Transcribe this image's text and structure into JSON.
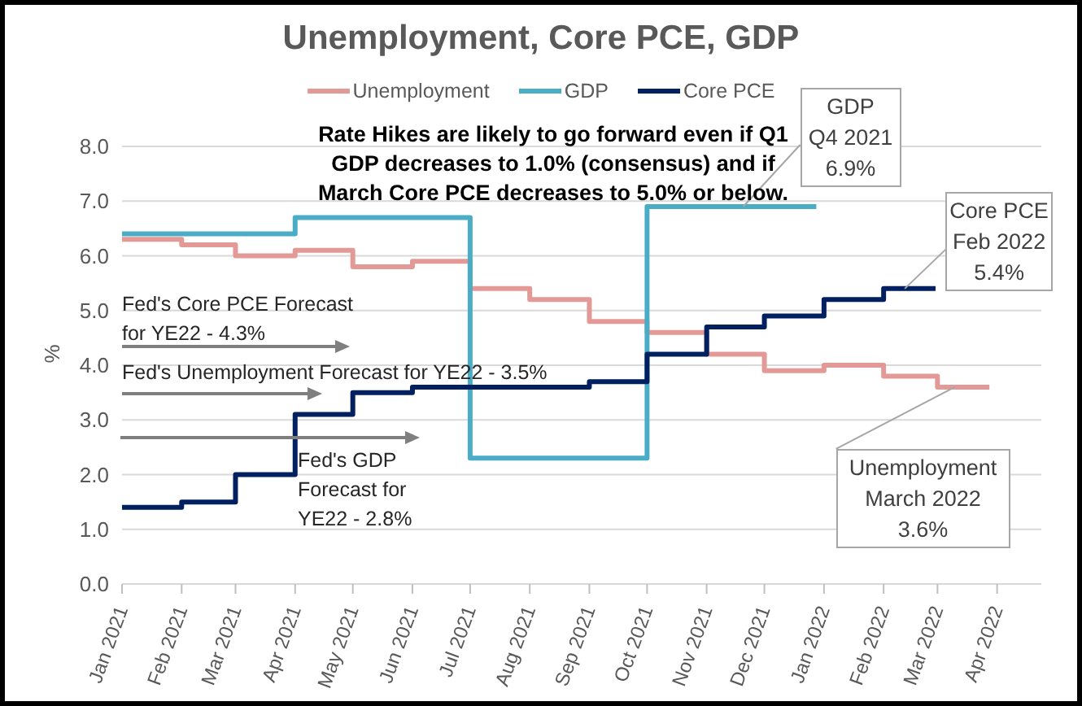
{
  "chart_data": {
    "type": "step",
    "title": "Unemployment, Core PCE, GDP",
    "ylabel": "%",
    "series": [
      {
        "name": "Unemployment",
        "color": "#e39a97",
        "x": [
          "2021-01-01",
          "2021-02-01",
          "2021-03-01",
          "2021-04-01",
          "2021-05-01",
          "2021-06-01",
          "2021-07-01",
          "2021-08-01",
          "2021-09-01",
          "2021-10-01",
          "2021-11-01",
          "2021-12-01",
          "2022-01-01",
          "2022-02-01",
          "2022-03-01",
          "2022-03-28"
        ],
        "values": [
          6.3,
          6.2,
          6.0,
          6.1,
          5.8,
          5.9,
          5.4,
          5.2,
          4.8,
          4.6,
          4.2,
          3.9,
          4.0,
          3.8,
          3.6,
          3.6
        ]
      },
      {
        "name": "GDP",
        "color": "#4bacc6",
        "x": [
          "2021-01-01",
          "2021-04-01",
          "2021-07-01",
          "2021-10-01",
          "2021-12-28"
        ],
        "values": [
          6.4,
          6.7,
          2.3,
          6.9,
          6.9
        ]
      },
      {
        "name": "Core PCE",
        "color": "#002060",
        "x": [
          "2021-01-01",
          "2021-02-01",
          "2021-03-01",
          "2021-04-01",
          "2021-05-01",
          "2021-06-01",
          "2021-07-01",
          "2021-08-01",
          "2021-09-01",
          "2021-10-01",
          "2021-11-01",
          "2021-12-01",
          "2022-01-01",
          "2022-02-01",
          "2022-02-28"
        ],
        "values": [
          1.4,
          1.5,
          2.0,
          3.1,
          3.5,
          3.6,
          3.6,
          3.6,
          3.7,
          4.2,
          4.7,
          4.9,
          5.2,
          5.4,
          5.4
        ]
      }
    ],
    "xlim": [
      "2021-01-01",
      "2022-04-24"
    ],
    "xticks": [
      {
        "value": "2021-01-01",
        "label": "Jan 2021"
      },
      {
        "value": "2021-02-01",
        "label": "Feb 2021"
      },
      {
        "value": "2021-03-01",
        "label": "Mar 2021"
      },
      {
        "value": "2021-04-01",
        "label": "Apr 2021"
      },
      {
        "value": "2021-05-01",
        "label": "May 2021"
      },
      {
        "value": "2021-06-01",
        "label": "Jun 2021"
      },
      {
        "value": "2021-07-01",
        "label": "Jul 2021"
      },
      {
        "value": "2021-08-01",
        "label": "Aug 2021"
      },
      {
        "value": "2021-09-01",
        "label": "Sep 2021"
      },
      {
        "value": "2021-10-01",
        "label": "Oct 2021"
      },
      {
        "value": "2021-11-01",
        "label": "Nov 2021"
      },
      {
        "value": "2021-12-01",
        "label": "Dec 2021"
      },
      {
        "value": "2022-01-01",
        "label": "Jan 2022"
      },
      {
        "value": "2022-02-01",
        "label": "Feb 2022"
      },
      {
        "value": "2022-03-01",
        "label": "Mar 2022"
      },
      {
        "value": "2022-04-01",
        "label": "Apr 2022"
      }
    ],
    "ylim": [
      0,
      8
    ],
    "yticks": [
      {
        "value": 0,
        "label": "0.0"
      },
      {
        "value": 1,
        "label": "1.0"
      },
      {
        "value": 2,
        "label": "2.0"
      },
      {
        "value": 3,
        "label": "3.0"
      },
      {
        "value": 4,
        "label": "4.0"
      },
      {
        "value": 5,
        "label": "5.0"
      },
      {
        "value": 6,
        "label": "6.0"
      },
      {
        "value": 7,
        "label": "7.0"
      },
      {
        "value": 8,
        "label": "8.0"
      }
    ],
    "grid": "y",
    "legend": "top",
    "marker": "none",
    "line_style": "solid",
    "annotations": [
      "Rate Hikes are likely to go forward even if Q1 GDP decreases to 1.0% (consensus) and if March Core PCE decreases to 5.0% or below.",
      "Fed's Core PCE Forecast for YE22 - 4.3%",
      "Fed's Unemployment Forecast for YE22 - 3.5%",
      "Fed's GDP Forecast for YE22 - 2.8%",
      {
        "text": "GDP\nQ4 2021\n6.9%",
        "x": "2021-11-20",
        "y": 6.9
      },
      {
        "text": "Core PCE\nFeb 2022\n5.4%",
        "x": "2022-02-12",
        "y": 5.4
      },
      {
        "text": "Unemployment\nMarch 2022\n3.6%",
        "x": "2022-03-10",
        "y": 3.6
      }
    ]
  }
}
